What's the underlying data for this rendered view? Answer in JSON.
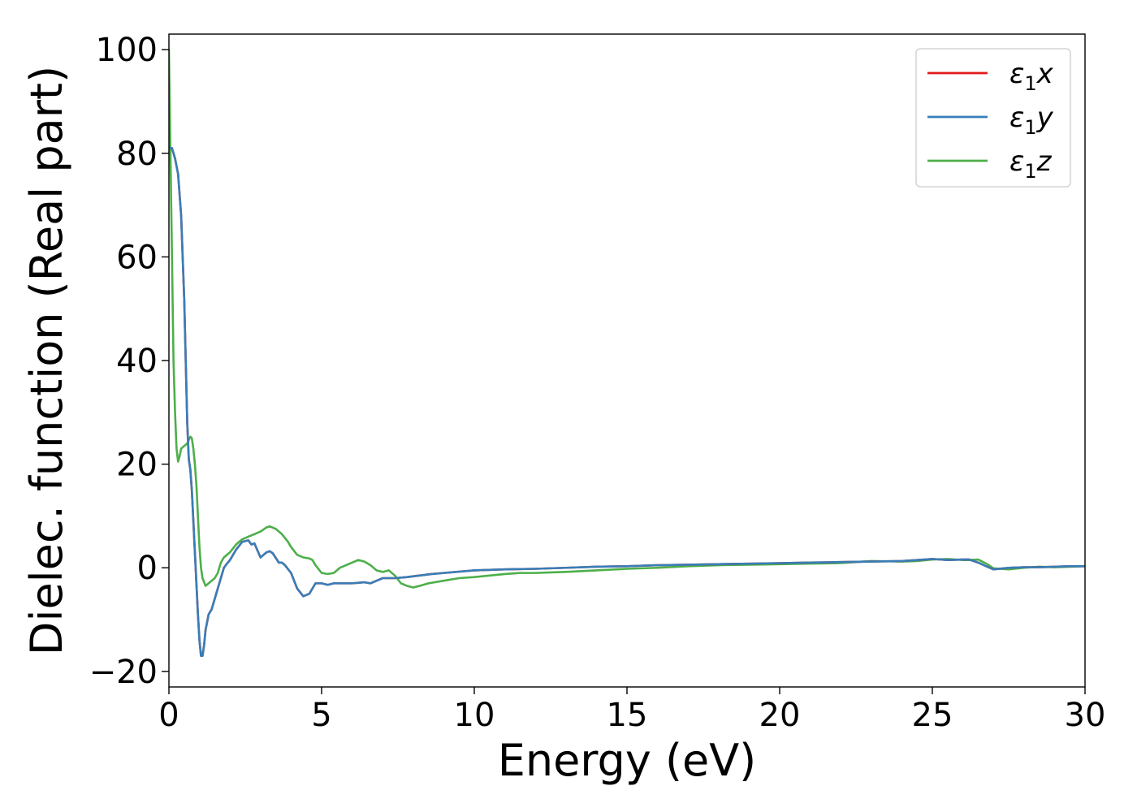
{
  "chart_data": {
    "type": "line",
    "title": "",
    "xlabel": "Energy (eV)",
    "ylabel": "Dielec. function (Real part)",
    "xlim": [
      0,
      30
    ],
    "ylim": [
      -23,
      103
    ],
    "xticks": [
      0,
      5,
      10,
      15,
      20,
      25,
      30
    ],
    "xtick_labels": [
      "0",
      "5",
      "10",
      "15",
      "20",
      "25",
      "30"
    ],
    "yticks": [
      -20,
      0,
      20,
      40,
      60,
      80,
      100
    ],
    "ytick_labels": [
      "−20",
      "0",
      "20",
      "40",
      "60",
      "80",
      "100"
    ],
    "grid": false,
    "legend_position": "top-right",
    "series": [
      {
        "name": "ε₁x",
        "name_parts": {
          "base": "ε",
          "sub": "1",
          "suffix": "x"
        },
        "color": "#e41a1c",
        "x": [
          0,
          0.1,
          0.2,
          0.3,
          0.4,
          0.5,
          0.55,
          0.6,
          0.65,
          0.7,
          0.75,
          0.8,
          0.85,
          0.9,
          0.95,
          1.0,
          1.05,
          1.1,
          1.15,
          1.2,
          1.3,
          1.4,
          1.5,
          1.6,
          1.7,
          1.8,
          1.9,
          2.0,
          2.2,
          2.4,
          2.6,
          2.7,
          2.8,
          3.0,
          3.1,
          3.2,
          3.3,
          3.4,
          3.6,
          3.7,
          3.8,
          4.0,
          4.2,
          4.4,
          4.6,
          4.7,
          4.8,
          5.0,
          5.2,
          5.4,
          5.6,
          6.0,
          6.4,
          6.6,
          6.8,
          7.0,
          7.4,
          7.8,
          8.2,
          8.6,
          9.0,
          10.0,
          11.0,
          12.0,
          13.0,
          14.0,
          15.0,
          16.0,
          17.0,
          18.0,
          19.0,
          20.0,
          21.0,
          22.0,
          23.0,
          24.0,
          24.5,
          25.0,
          25.5,
          26.0,
          26.2,
          26.5,
          26.8,
          27.0,
          27.5,
          28.0,
          28.5,
          29.0,
          29.5,
          30.0
        ],
        "values": [
          81,
          81,
          79,
          76,
          68,
          52,
          40,
          28,
          21,
          19,
          15,
          9,
          3,
          -3,
          -9,
          -14,
          -17,
          -17,
          -15,
          -12,
          -9,
          -8,
          -6,
          -4,
          -2,
          0,
          0.8,
          1.5,
          3.5,
          5,
          5.3,
          4.5,
          4.7,
          2,
          2.5,
          3,
          3.2,
          2.8,
          1,
          1,
          0.5,
          -1,
          -4,
          -5.5,
          -5,
          -4,
          -3,
          -3,
          -3.3,
          -3,
          -3,
          -3,
          -2.8,
          -3,
          -2.5,
          -2,
          -2,
          -1.8,
          -1.5,
          -1.2,
          -1,
          -0.5,
          -0.3,
          -0.2,
          0,
          0.2,
          0.3,
          0.5,
          0.6,
          0.7,
          0.8,
          0.9,
          1.0,
          1.1,
          1.2,
          1.3,
          1.5,
          1.7,
          1.5,
          1.6,
          1.6,
          1.0,
          0.2,
          -0.3,
          0,
          0.1,
          0.1,
          0.2,
          0.3,
          0.3
        ]
      },
      {
        "name": "ε₁y",
        "name_parts": {
          "base": "ε",
          "sub": "1",
          "suffix": "y"
        },
        "color": "#377eb8",
        "x": [
          0,
          0.1,
          0.2,
          0.3,
          0.4,
          0.5,
          0.55,
          0.6,
          0.65,
          0.7,
          0.75,
          0.8,
          0.85,
          0.9,
          0.95,
          1.0,
          1.05,
          1.1,
          1.15,
          1.2,
          1.3,
          1.4,
          1.5,
          1.6,
          1.7,
          1.8,
          1.9,
          2.0,
          2.2,
          2.4,
          2.6,
          2.7,
          2.8,
          3.0,
          3.1,
          3.2,
          3.3,
          3.4,
          3.6,
          3.7,
          3.8,
          4.0,
          4.2,
          4.4,
          4.6,
          4.7,
          4.8,
          5.0,
          5.2,
          5.4,
          5.6,
          6.0,
          6.4,
          6.6,
          6.8,
          7.0,
          7.4,
          7.8,
          8.2,
          8.6,
          9.0,
          10.0,
          11.0,
          12.0,
          13.0,
          14.0,
          15.0,
          16.0,
          17.0,
          18.0,
          19.0,
          20.0,
          21.0,
          22.0,
          23.0,
          24.0,
          24.5,
          25.0,
          25.5,
          26.0,
          26.2,
          26.5,
          26.8,
          27.0,
          27.5,
          28.0,
          28.5,
          29.0,
          29.5,
          30.0
        ],
        "values": [
          81,
          81,
          79,
          76,
          68,
          52,
          40,
          28,
          21,
          19,
          15,
          9,
          3,
          -3,
          -9,
          -14,
          -17,
          -17,
          -15,
          -12,
          -9,
          -8,
          -6,
          -4,
          -2,
          0,
          0.8,
          1.5,
          3.5,
          5,
          5.3,
          4.5,
          4.7,
          2,
          2.5,
          3,
          3.2,
          2.8,
          1,
          1,
          0.5,
          -1,
          -4,
          -5.5,
          -5,
          -4,
          -3,
          -3,
          -3.3,
          -3,
          -3,
          -3,
          -2.8,
          -3,
          -2.5,
          -2,
          -2,
          -1.8,
          -1.5,
          -1.2,
          -1,
          -0.5,
          -0.3,
          -0.2,
          0,
          0.2,
          0.3,
          0.5,
          0.6,
          0.7,
          0.8,
          0.9,
          1.0,
          1.1,
          1.2,
          1.3,
          1.5,
          1.7,
          1.5,
          1.6,
          1.6,
          1.0,
          0.2,
          -0.3,
          0,
          0.1,
          0.1,
          0.2,
          0.3,
          0.3
        ]
      },
      {
        "name": "ε₁z",
        "name_parts": {
          "base": "ε",
          "sub": "1",
          "suffix": "z"
        },
        "color": "#4daf4a",
        "x": [
          0,
          0.05,
          0.1,
          0.15,
          0.2,
          0.25,
          0.3,
          0.35,
          0.4,
          0.5,
          0.6,
          0.7,
          0.75,
          0.8,
          0.85,
          0.9,
          0.95,
          1.0,
          1.05,
          1.1,
          1.2,
          1.3,
          1.4,
          1.5,
          1.6,
          1.7,
          1.8,
          2.0,
          2.2,
          2.4,
          2.6,
          2.8,
          3.0,
          3.2,
          3.3,
          3.5,
          3.7,
          3.9,
          4.0,
          4.2,
          4.4,
          4.6,
          4.7,
          4.8,
          5.0,
          5.2,
          5.4,
          5.6,
          5.8,
          6.0,
          6.2,
          6.4,
          6.6,
          6.8,
          7.0,
          7.2,
          7.4,
          7.6,
          7.8,
          8.0,
          8.2,
          8.5,
          9.0,
          9.5,
          10.0,
          10.5,
          11.0,
          11.5,
          12.0,
          12.5,
          13.0,
          14.0,
          15.0,
          16.0,
          17.0,
          18.0,
          19.0,
          20.0,
          21.0,
          22.0,
          22.5,
          23.0,
          24.0,
          24.5,
          25.0,
          25.5,
          26.0,
          26.2,
          26.5,
          26.8,
          27.0,
          27.5,
          28.0,
          28.5,
          29.0,
          29.5,
          30.0
        ],
        "values": [
          100,
          80,
          60,
          40,
          30,
          23,
          20.5,
          21.5,
          23,
          23.5,
          24,
          25.3,
          25,
          23,
          20,
          16,
          10,
          4,
          0,
          -2,
          -3.5,
          -3,
          -2.5,
          -2,
          -1,
          1,
          2,
          3,
          4.5,
          5.5,
          6,
          6.5,
          7,
          7.8,
          8,
          7.5,
          6.5,
          5,
          4,
          2.5,
          2,
          1.8,
          1.5,
          0.5,
          -1,
          -1.2,
          -1,
          0,
          0.5,
          1,
          1.5,
          1.2,
          0.5,
          -0.5,
          -0.8,
          -0.5,
          -1.5,
          -3,
          -3.5,
          -3.8,
          -3.5,
          -3,
          -2.5,
          -2,
          -1.8,
          -1.5,
          -1.2,
          -1,
          -1,
          -0.9,
          -0.8,
          -0.5,
          -0.2,
          0,
          0.3,
          0.5,
          0.6,
          0.7,
          0.8,
          0.9,
          1.1,
          1.3,
          1.2,
          1.3,
          1.6,
          1.7,
          1.5,
          1.5,
          1.6,
          0.7,
          -0.1,
          -0.3,
          0,
          0.2,
          0.1,
          0.2,
          0.3
        ]
      }
    ]
  }
}
